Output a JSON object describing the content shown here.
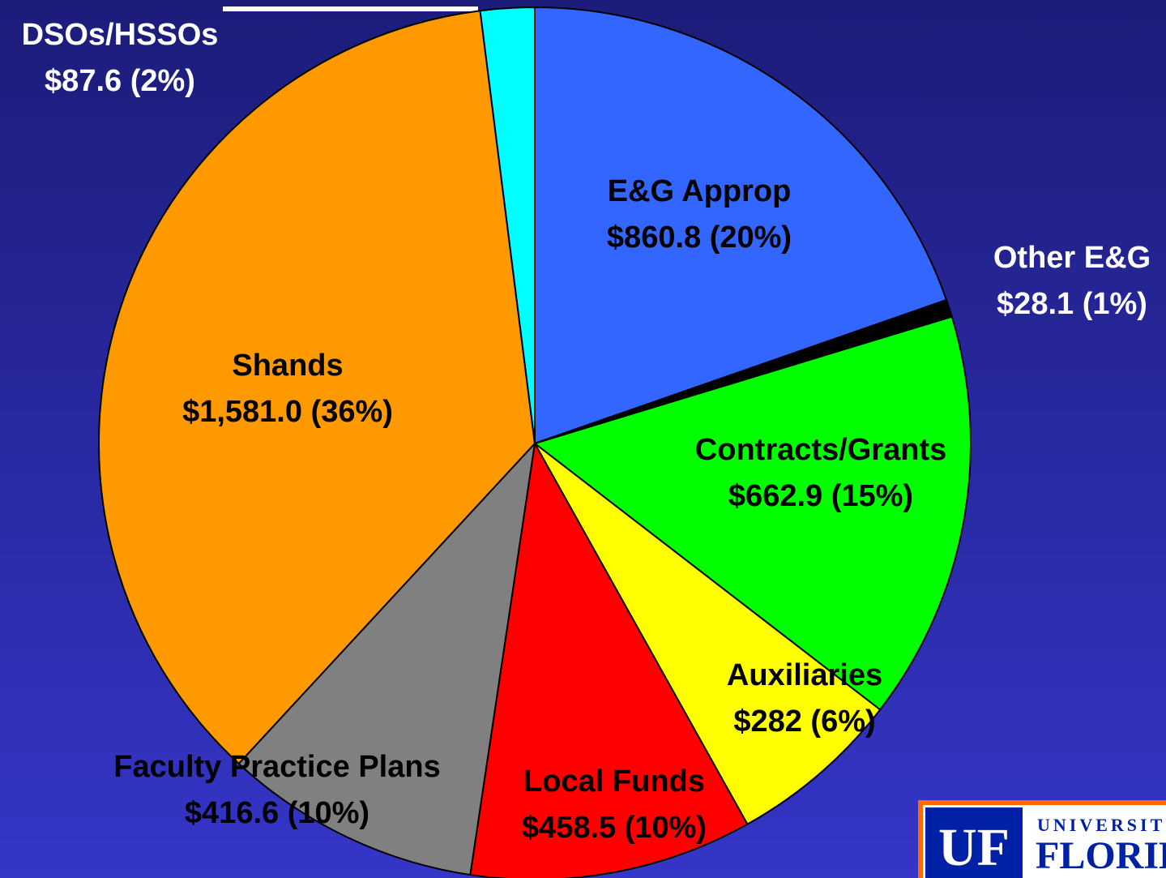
{
  "chart_data": {
    "type": "pie",
    "categories": [
      "E&G Approp",
      "Other E&G",
      "Contracts/Grants",
      "Auxiliaries",
      "Local Funds",
      "Faculty Practice Plans",
      "Shands",
      "DSOs/HSSOs"
    ],
    "values": [
      860.8,
      28.1,
      662.9,
      282,
      458.5,
      416.6,
      1581.0,
      87.6
    ],
    "value_labels": [
      "$860.8 (20%)",
      "$28.1 (1%)",
      "$662.9 (15%)",
      "$282 (6%)",
      "$458.5 (10%)",
      "$416.6 (10%)",
      "$1,581.0 (36%)",
      "$87.6 (2%)"
    ],
    "colors": [
      "#3366ff",
      "#000000",
      "#00ff00",
      "#ffff00",
      "#ff0000",
      "#808080",
      "#ff9900",
      "#00ffff"
    ]
  },
  "logo": {
    "mark": "UF",
    "line1": "UNIVERSITY",
    "line2": "FLORIDA"
  }
}
